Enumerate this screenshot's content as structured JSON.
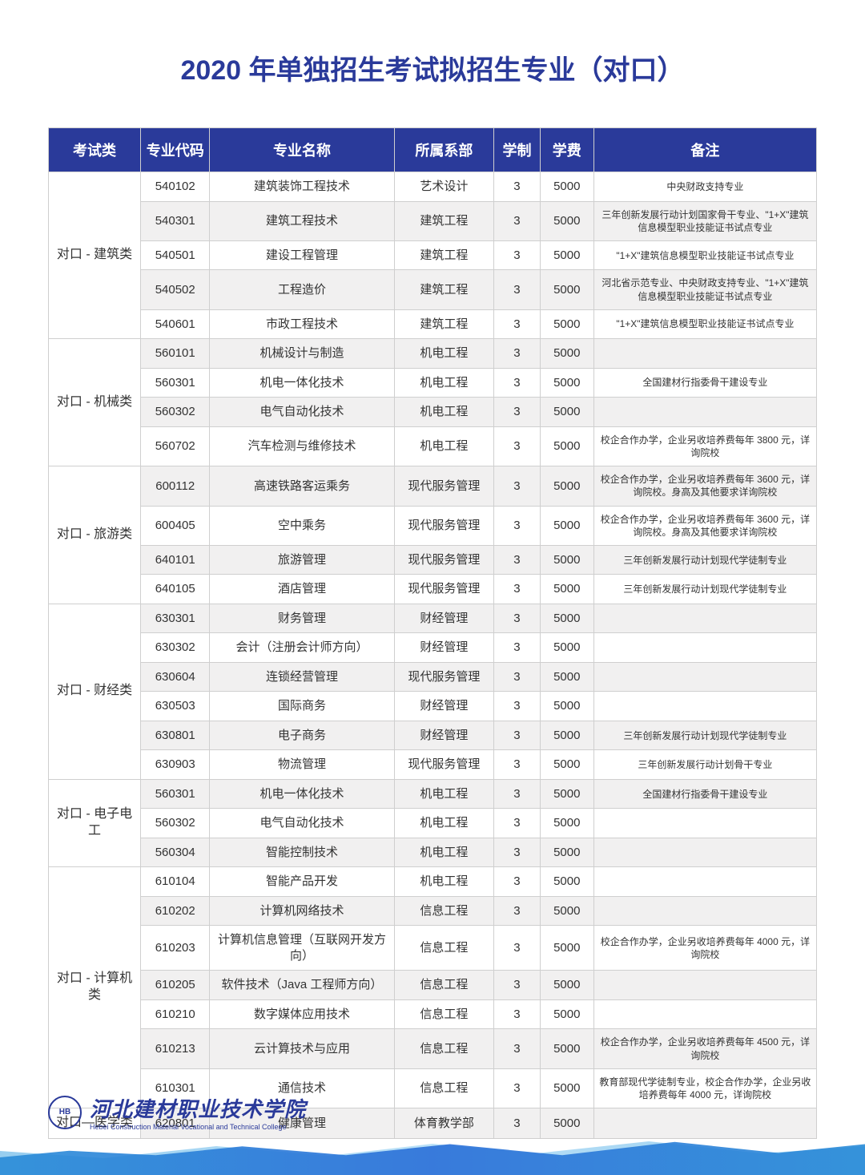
{
  "title": "2020 年单独招生考试拟招生专业（对口）",
  "headers": [
    "考试类",
    "专业代码",
    "专业名称",
    "所属系部",
    "学制",
    "学费",
    "备注"
  ],
  "groups": [
    {
      "cat": "对口 - 建筑类",
      "rows": [
        {
          "code": "540102",
          "name": "建筑装饰工程技术",
          "dept": "艺术设计",
          "dur": "3",
          "fee": "5000",
          "remark": "中央财政支持专业",
          "alt": false
        },
        {
          "code": "540301",
          "name": "建筑工程技术",
          "dept": "建筑工程",
          "dur": "3",
          "fee": "5000",
          "remark": "三年创新发展行动计划国家骨干专业、\"1+X\"建筑信息模型职业技能证书试点专业",
          "alt": true
        },
        {
          "code": "540501",
          "name": "建设工程管理",
          "dept": "建筑工程",
          "dur": "3",
          "fee": "5000",
          "remark": "\"1+X\"建筑信息模型职业技能证书试点专业",
          "alt": false
        },
        {
          "code": "540502",
          "name": "工程造价",
          "dept": "建筑工程",
          "dur": "3",
          "fee": "5000",
          "remark": "河北省示范专业、中央财政支持专业、\"1+X\"建筑信息模型职业技能证书试点专业",
          "alt": true
        },
        {
          "code": "540601",
          "name": "市政工程技术",
          "dept": "建筑工程",
          "dur": "3",
          "fee": "5000",
          "remark": "\"1+X\"建筑信息模型职业技能证书试点专业",
          "alt": false
        }
      ]
    },
    {
      "cat": "对口 - 机械类",
      "rows": [
        {
          "code": "560101",
          "name": "机械设计与制造",
          "dept": "机电工程",
          "dur": "3",
          "fee": "5000",
          "remark": "",
          "alt": true
        },
        {
          "code": "560301",
          "name": "机电一体化技术",
          "dept": "机电工程",
          "dur": "3",
          "fee": "5000",
          "remark": "全国建材行指委骨干建设专业",
          "alt": false
        },
        {
          "code": "560302",
          "name": "电气自动化技术",
          "dept": "机电工程",
          "dur": "3",
          "fee": "5000",
          "remark": "",
          "alt": true
        },
        {
          "code": "560702",
          "name": "汽车检测与维修技术",
          "dept": "机电工程",
          "dur": "3",
          "fee": "5000",
          "remark": "校企合作办学，企业另收培养费每年 3800 元，详询院校",
          "alt": false
        }
      ]
    },
    {
      "cat": "对口 - 旅游类",
      "rows": [
        {
          "code": "600112",
          "name": "高速铁路客运乘务",
          "dept": "现代服务管理",
          "dur": "3",
          "fee": "5000",
          "remark": "校企合作办学，企业另收培养费每年 3600 元，详询院校。身高及其他要求详询院校",
          "alt": true
        },
        {
          "code": "600405",
          "name": "空中乘务",
          "dept": "现代服务管理",
          "dur": "3",
          "fee": "5000",
          "remark": "校企合作办学，企业另收培养费每年 3600 元，详询院校。身高及其他要求详询院校",
          "alt": false
        },
        {
          "code": "640101",
          "name": "旅游管理",
          "dept": "现代服务管理",
          "dur": "3",
          "fee": "5000",
          "remark": "三年创新发展行动计划现代学徒制专业",
          "alt": true
        },
        {
          "code": "640105",
          "name": "酒店管理",
          "dept": "现代服务管理",
          "dur": "3",
          "fee": "5000",
          "remark": "三年创新发展行动计划现代学徒制专业",
          "alt": false
        }
      ]
    },
    {
      "cat": "对口 - 财经类",
      "rows": [
        {
          "code": "630301",
          "name": "财务管理",
          "dept": "财经管理",
          "dur": "3",
          "fee": "5000",
          "remark": "",
          "alt": true
        },
        {
          "code": "630302",
          "name": "会计（注册会计师方向）",
          "dept": "财经管理",
          "dur": "3",
          "fee": "5000",
          "remark": "",
          "alt": false
        },
        {
          "code": "630604",
          "name": "连锁经营管理",
          "dept": "现代服务管理",
          "dur": "3",
          "fee": "5000",
          "remark": "",
          "alt": true
        },
        {
          "code": "630503",
          "name": "国际商务",
          "dept": "财经管理",
          "dur": "3",
          "fee": "5000",
          "remark": "",
          "alt": false
        },
        {
          "code": "630801",
          "name": "电子商务",
          "dept": "财经管理",
          "dur": "3",
          "fee": "5000",
          "remark": "三年创新发展行动计划现代学徒制专业",
          "alt": true
        },
        {
          "code": "630903",
          "name": "物流管理",
          "dept": "现代服务管理",
          "dur": "3",
          "fee": "5000",
          "remark": "三年创新发展行动计划骨干专业",
          "alt": false
        }
      ]
    },
    {
      "cat": "对口 - 电子电工",
      "rows": [
        {
          "code": "560301",
          "name": "机电一体化技术",
          "dept": "机电工程",
          "dur": "3",
          "fee": "5000",
          "remark": "全国建材行指委骨干建设专业",
          "alt": true
        },
        {
          "code": "560302",
          "name": "电气自动化技术",
          "dept": "机电工程",
          "dur": "3",
          "fee": "5000",
          "remark": "",
          "alt": false
        },
        {
          "code": "560304",
          "name": "智能控制技术",
          "dept": "机电工程",
          "dur": "3",
          "fee": "5000",
          "remark": "",
          "alt": true
        }
      ]
    },
    {
      "cat": "对口 - 计算机类",
      "rows": [
        {
          "code": "610104",
          "name": "智能产品开发",
          "dept": "机电工程",
          "dur": "3",
          "fee": "5000",
          "remark": "",
          "alt": false
        },
        {
          "code": "610202",
          "name": "计算机网络技术",
          "dept": "信息工程",
          "dur": "3",
          "fee": "5000",
          "remark": "",
          "alt": true
        },
        {
          "code": "610203",
          "name": "计算机信息管理（互联网开发方向）",
          "dept": "信息工程",
          "dur": "3",
          "fee": "5000",
          "remark": "校企合作办学，企业另收培养费每年 4000 元，详询院校",
          "alt": false
        },
        {
          "code": "610205",
          "name": "软件技术（Java 工程师方向）",
          "dept": "信息工程",
          "dur": "3",
          "fee": "5000",
          "remark": "",
          "alt": true
        },
        {
          "code": "610210",
          "name": "数字媒体应用技术",
          "dept": "信息工程",
          "dur": "3",
          "fee": "5000",
          "remark": "",
          "alt": false
        },
        {
          "code": "610213",
          "name": "云计算技术与应用",
          "dept": "信息工程",
          "dur": "3",
          "fee": "5000",
          "remark": "校企合作办学，企业另收培养费每年 4500 元，详询院校",
          "alt": true
        },
        {
          "code": "610301",
          "name": "通信技术",
          "dept": "信息工程",
          "dur": "3",
          "fee": "5000",
          "remark": "教育部现代学徒制专业，校企合作办学，企业另收培养费每年 4000 元，详询院校",
          "alt": false
        }
      ]
    },
    {
      "cat": "对口—医学类",
      "rows": [
        {
          "code": "620801",
          "name": "健康管理",
          "dept": "体育教学部",
          "dur": "3",
          "fee": "5000",
          "remark": "",
          "alt": true
        }
      ]
    }
  ],
  "footer": {
    "school_cn": "河北建材职业技术学院",
    "school_en": "Hebei Construction Material Vocational and Technical College"
  }
}
